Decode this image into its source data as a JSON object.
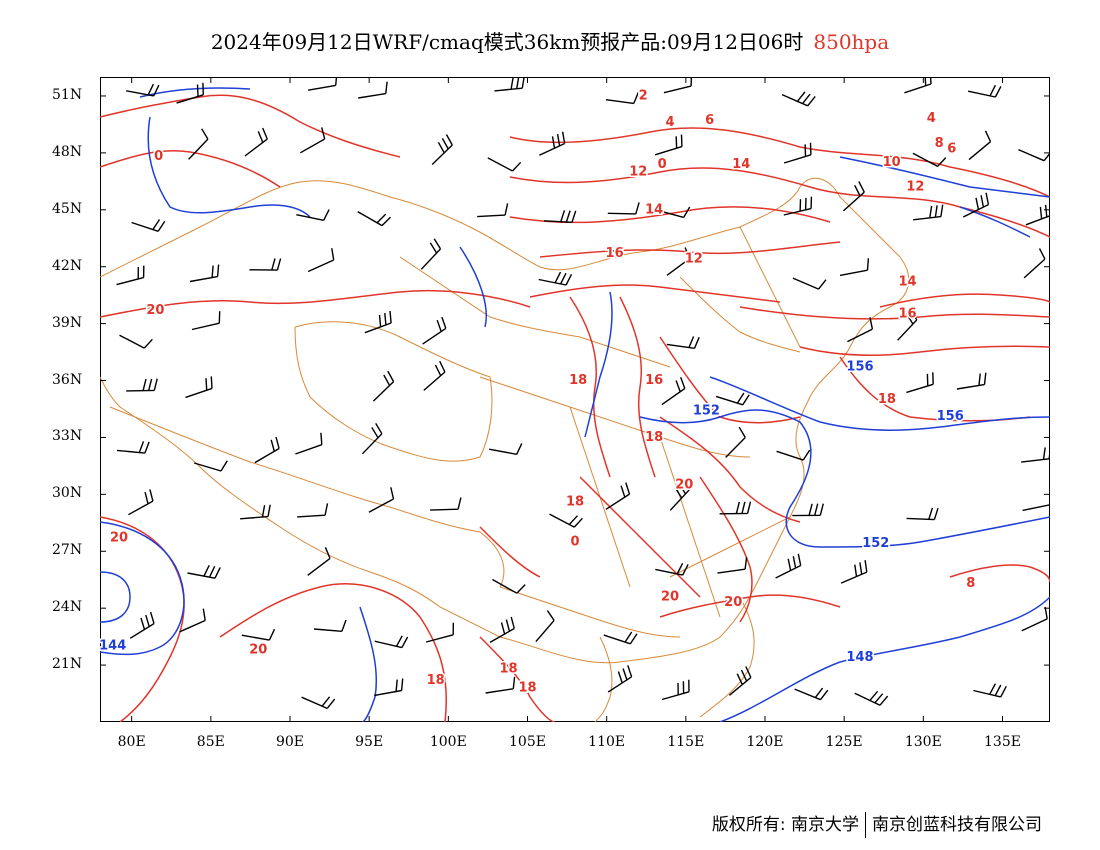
{
  "title": {
    "main": "2024年09月12日WRF/cmaq模式36km预报产品:09月12日06时",
    "level": "850hpa"
  },
  "colors": {
    "temperature": "#e0352a",
    "geopotential": "#1f3fd6",
    "border": "#d8893a",
    "wind": "#000000"
  },
  "axes": {
    "lat_labels": [
      "51N",
      "48N",
      "45N",
      "42N",
      "39N",
      "36N",
      "33N",
      "30N",
      "27N",
      "24N",
      "21N"
    ],
    "lon_labels": [
      "80E",
      "85E",
      "90E",
      "95E",
      "100E",
      "105E",
      "110E",
      "115E",
      "120E",
      "125E",
      "130E",
      "135E"
    ],
    "lat_values": [
      51,
      48,
      45,
      42,
      39,
      36,
      33,
      30,
      27,
      24,
      21
    ],
    "lon_values": [
      80,
      85,
      90,
      95,
      100,
      105,
      110,
      115,
      120,
      125,
      130,
      135
    ],
    "lon_range": [
      78,
      138
    ],
    "lat_range": [
      18,
      52
    ]
  },
  "temperature_labels": [
    {
      "text": "2",
      "lon": 112.3,
      "lat": 51.0
    },
    {
      "text": "4",
      "lon": 114.0,
      "lat": 49.6
    },
    {
      "text": "6",
      "lon": 116.5,
      "lat": 49.7
    },
    {
      "text": "0",
      "lon": 113.5,
      "lat": 47.4
    },
    {
      "text": "12",
      "lon": 112.0,
      "lat": 47.0
    },
    {
      "text": "14",
      "lon": 118.5,
      "lat": 47.4
    },
    {
      "text": "14",
      "lon": 113.0,
      "lat": 45.0
    },
    {
      "text": "16",
      "lon": 110.5,
      "lat": 42.7
    },
    {
      "text": "12",
      "lon": 115.5,
      "lat": 42.4
    },
    {
      "text": "0",
      "lon": 81.7,
      "lat": 47.8
    },
    {
      "text": "20",
      "lon": 81.5,
      "lat": 39.7
    },
    {
      "text": "4",
      "lon": 130.5,
      "lat": 49.8
    },
    {
      "text": "6",
      "lon": 131.8,
      "lat": 48.2
    },
    {
      "text": "8",
      "lon": 131.0,
      "lat": 48.5
    },
    {
      "text": "10",
      "lon": 128.0,
      "lat": 47.5
    },
    {
      "text": "12",
      "lon": 129.5,
      "lat": 46.2
    },
    {
      "text": "14",
      "lon": 129.0,
      "lat": 41.2
    },
    {
      "text": "16",
      "lon": 129.0,
      "lat": 39.5
    },
    {
      "text": "18",
      "lon": 108.2,
      "lat": 36.0
    },
    {
      "text": "16",
      "lon": 113.0,
      "lat": 36.0
    },
    {
      "text": "18",
      "lon": 127.7,
      "lat": 35.0
    },
    {
      "text": "18",
      "lon": 113.0,
      "lat": 33.0
    },
    {
      "text": "20",
      "lon": 114.9,
      "lat": 30.5
    },
    {
      "text": "18",
      "lon": 108.0,
      "lat": 29.6
    },
    {
      "text": "0",
      "lon": 108.0,
      "lat": 27.5
    },
    {
      "text": "20",
      "lon": 79.2,
      "lat": 27.7
    },
    {
      "text": "20",
      "lon": 114.0,
      "lat": 24.6
    },
    {
      "text": "20",
      "lon": 118.0,
      "lat": 24.3
    },
    {
      "text": "8",
      "lon": 133.0,
      "lat": 25.3
    },
    {
      "text": "20",
      "lon": 88.0,
      "lat": 21.8
    },
    {
      "text": "18",
      "lon": 99.2,
      "lat": 20.2
    },
    {
      "text": "18",
      "lon": 103.8,
      "lat": 20.8
    },
    {
      "text": "18",
      "lon": 105.0,
      "lat": 19.8
    }
  ],
  "height_labels": [
    {
      "text": "156",
      "lon": 126.0,
      "lat": 36.7
    },
    {
      "text": "152",
      "lon": 116.3,
      "lat": 34.4
    },
    {
      "text": "156",
      "lon": 131.7,
      "lat": 34.1
    },
    {
      "text": "152",
      "lon": 127.0,
      "lat": 27.4
    },
    {
      "text": "148",
      "lon": 126.0,
      "lat": 21.4
    },
    {
      "text": "144",
      "lon": 78.8,
      "lat": 22.0
    }
  ],
  "footer": {
    "left": "版权所有: 南京大学",
    "right": "南京创蓝科技有限公司"
  }
}
